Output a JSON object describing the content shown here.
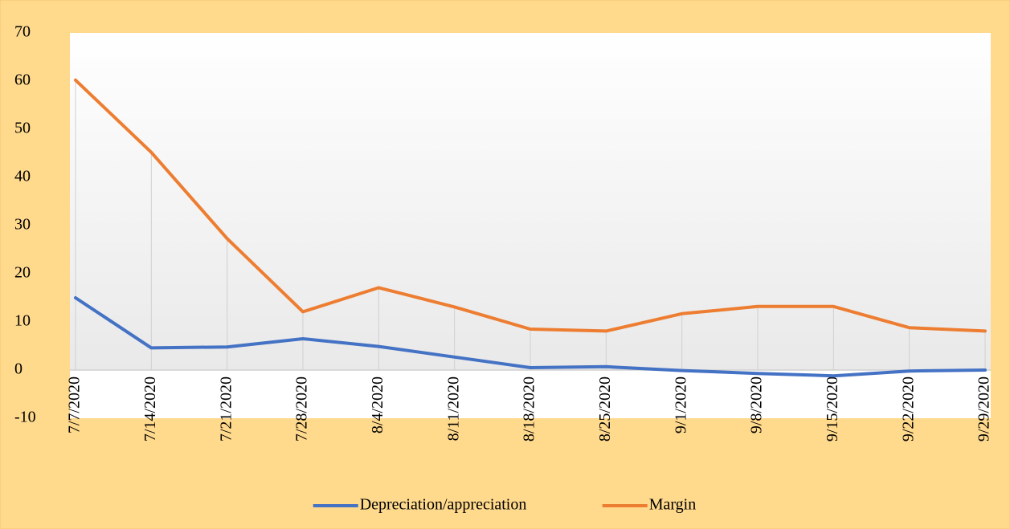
{
  "chart_data": {
    "type": "line",
    "categories": [
      "7/7/2020",
      "7/14/2020",
      "7/21/2020",
      "7/28/2020",
      "8/4/2020",
      "8/11/2020",
      "8/18/2020",
      "8/25/2020",
      "9/1/2020",
      "9/8/2020",
      "9/15/2020",
      "9/22/2020",
      "9/29/2020"
    ],
    "series": [
      {
        "name": "Depreciation/appreciation",
        "color": "#4472c4",
        "values": [
          15,
          4.6,
          4.8,
          6.5,
          4.9,
          2.7,
          0.5,
          0.7,
          -0.1,
          -0.7,
          -1.2,
          -0.2,
          0
        ]
      },
      {
        "name": "Margin",
        "color": "#ed7d31",
        "values": [
          60.2,
          45.2,
          27.3,
          12.1,
          17.1,
          13.1,
          8.5,
          8.1,
          11.7,
          13.2,
          13.2,
          8.8,
          8.1
        ]
      }
    ],
    "ylim": [
      -10,
      70
    ],
    "yticks": [
      -10,
      0,
      10,
      20,
      30,
      40,
      50,
      60,
      70
    ],
    "drop_lines": true,
    "legend": "bottom"
  }
}
